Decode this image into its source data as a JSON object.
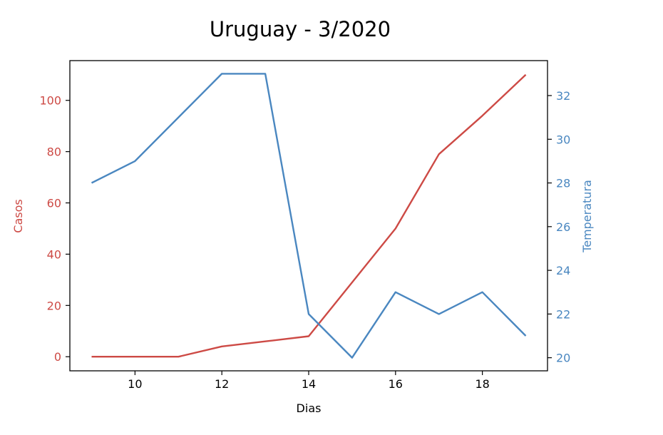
{
  "chart_data": {
    "type": "line",
    "title": "Uruguay - 3/2020",
    "xlabel": "Dias",
    "x": [
      9,
      10,
      11,
      12,
      13,
      14,
      15,
      16,
      17,
      18,
      19
    ],
    "xlim": [
      8.5,
      19.5
    ],
    "xticks": [
      10,
      12,
      14,
      16,
      18
    ],
    "grid": false,
    "axes": {
      "left": {
        "label": "Casos",
        "color": "#cd4a45",
        "ylim": [
          -5.5,
          115.5
        ],
        "ticks": [
          0,
          20,
          40,
          60,
          80,
          100
        ]
      },
      "right": {
        "label": "Temperatura",
        "color": "#4a87c0",
        "ylim": [
          19.4,
          33.6
        ],
        "ticks": [
          20,
          22,
          24,
          26,
          28,
          30,
          32
        ]
      }
    },
    "series": [
      {
        "axis": "left",
        "color": "#cd4a45",
        "values": [
          0,
          0,
          0,
          4,
          6,
          8,
          29,
          50,
          79,
          94,
          110
        ]
      },
      {
        "axis": "right",
        "color": "#4a87c0",
        "values": [
          28,
          29,
          31,
          33,
          33,
          22,
          20,
          23,
          22,
          23,
          21
        ]
      }
    ]
  }
}
